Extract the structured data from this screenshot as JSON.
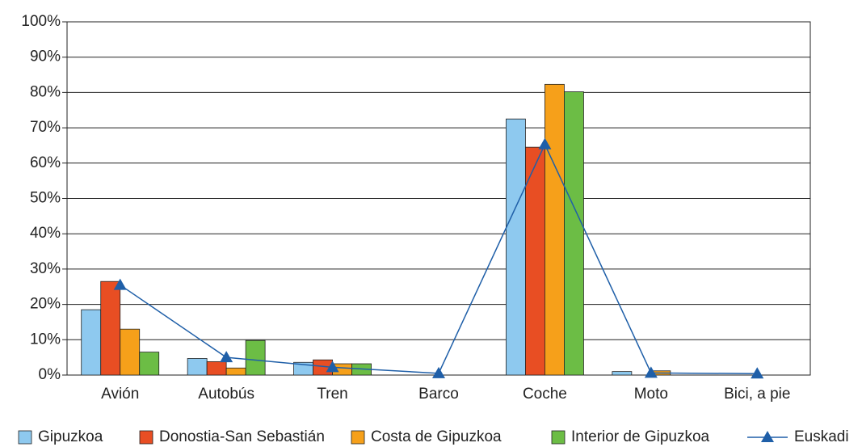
{
  "chart_data": {
    "type": "bar",
    "categories": [
      "Avión",
      "Autobús",
      "Tren",
      "Barco",
      "Coche",
      "Moto",
      "Bici, a pie"
    ],
    "series": [
      {
        "name": "Gipuzkoa",
        "color": "#8ec9ef",
        "values": [
          18.5,
          4.7,
          3.6,
          0,
          72.5,
          1,
          0
        ]
      },
      {
        "name": "Donostia-San Sebastián",
        "color": "#e84e23",
        "values": [
          26.5,
          3.8,
          4.3,
          0,
          64.5,
          0,
          0
        ]
      },
      {
        "name": "Costa de Gipuzkoa",
        "color": "#f6a01a",
        "values": [
          13,
          2,
          3.2,
          0,
          82.3,
          1.2,
          0
        ]
      },
      {
        "name": "Interior de Gipuzkoa",
        "color": "#6cbd45",
        "values": [
          6.5,
          9.8,
          3.2,
          0,
          80.2,
          0,
          0
        ]
      },
      {
        "name": "Euskadi",
        "color": "#1f5fa8",
        "type": "line",
        "values": [
          25.5,
          5,
          2.2,
          0.5,
          65.3,
          0.6,
          0.4
        ]
      }
    ],
    "ylim": [
      0,
      100
    ],
    "yticks": [
      {
        "value": 0,
        "label": "0%"
      },
      {
        "value": 10,
        "label": "10%"
      },
      {
        "value": 20,
        "label": "20%"
      },
      {
        "value": 30,
        "label": "30%"
      },
      {
        "value": 40,
        "label": "40%"
      },
      {
        "value": 50,
        "label": "50%"
      },
      {
        "value": 60,
        "label": "60%"
      },
      {
        "value": 70,
        "label": "70%"
      },
      {
        "value": 80,
        "label": "80%"
      },
      {
        "value": 90,
        "label": "90%"
      },
      {
        "value": 100,
        "label": "100%"
      }
    ],
    "grid": true,
    "legend": "bottom"
  }
}
